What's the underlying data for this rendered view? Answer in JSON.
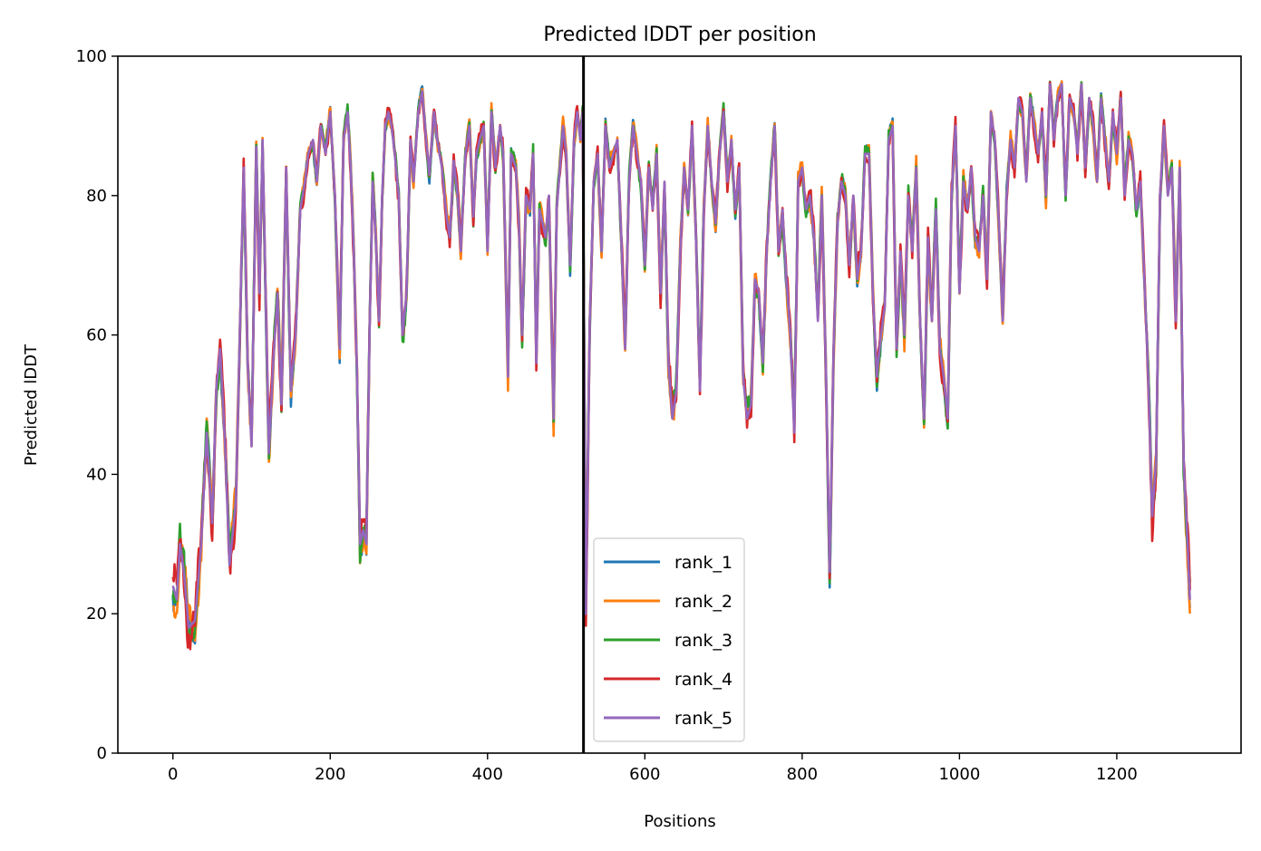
{
  "chart_data": {
    "type": "line",
    "title": "Predicted lDDT per position",
    "xlabel": "Positions",
    "ylabel": "Predicted lDDT",
    "xlim": [
      -70,
      1358
    ],
    "ylim": [
      0,
      100
    ],
    "x_ticks": [
      0,
      200,
      400,
      600,
      800,
      1000,
      1200
    ],
    "y_ticks": [
      0,
      20,
      40,
      60,
      80,
      100
    ],
    "grid": false,
    "legend_position": "lower center",
    "divider_x": 522,
    "divider_color": "#000000",
    "x_max": 1293,
    "base_curve": [
      [
        0,
        24
      ],
      [
        5,
        22
      ],
      [
        9,
        30
      ],
      [
        14,
        26
      ],
      [
        20,
        18
      ],
      [
        28,
        19
      ],
      [
        36,
        30
      ],
      [
        43,
        46
      ],
      [
        50,
        33
      ],
      [
        55,
        52
      ],
      [
        60,
        58
      ],
      [
        66,
        45
      ],
      [
        72,
        27
      ],
      [
        80,
        36
      ],
      [
        86,
        65
      ],
      [
        90,
        84
      ],
      [
        95,
        56
      ],
      [
        100,
        44
      ],
      [
        106,
        87
      ],
      [
        110,
        66
      ],
      [
        114,
        88
      ],
      [
        118,
        65
      ],
      [
        122,
        43
      ],
      [
        128,
        57
      ],
      [
        133,
        66
      ],
      [
        138,
        50
      ],
      [
        144,
        84
      ],
      [
        150,
        52
      ],
      [
        156,
        60
      ],
      [
        162,
        78
      ],
      [
        168,
        82
      ],
      [
        172,
        86
      ],
      [
        178,
        88
      ],
      [
        183,
        82
      ],
      [
        188,
        90
      ],
      [
        194,
        86
      ],
      [
        200,
        92
      ],
      [
        206,
        80
      ],
      [
        212,
        58
      ],
      [
        217,
        88
      ],
      [
        222,
        92
      ],
      [
        226,
        84
      ],
      [
        230,
        72
      ],
      [
        234,
        55
      ],
      [
        238,
        30
      ],
      [
        242,
        32
      ],
      [
        246,
        30
      ],
      [
        250,
        60
      ],
      [
        254,
        82
      ],
      [
        258,
        74
      ],
      [
        262,
        62
      ],
      [
        266,
        80
      ],
      [
        270,
        90
      ],
      [
        274,
        92
      ],
      [
        278,
        90
      ],
      [
        282,
        86
      ],
      [
        287,
        80
      ],
      [
        292,
        60
      ],
      [
        297,
        66
      ],
      [
        302,
        88
      ],
      [
        306,
        82
      ],
      [
        312,
        92
      ],
      [
        317,
        95
      ],
      [
        322,
        88
      ],
      [
        326,
        83
      ],
      [
        332,
        92
      ],
      [
        336,
        88
      ],
      [
        342,
        84
      ],
      [
        348,
        77
      ],
      [
        352,
        74
      ],
      [
        357,
        85
      ],
      [
        362,
        80
      ],
      [
        366,
        72
      ],
      [
        372,
        86
      ],
      [
        377,
        90
      ],
      [
        382,
        77
      ],
      [
        386,
        86
      ],
      [
        390,
        88
      ],
      [
        395,
        90
      ],
      [
        400,
        72
      ],
      [
        405,
        92
      ],
      [
        410,
        84
      ],
      [
        416,
        90
      ],
      [
        420,
        86
      ],
      [
        426,
        54
      ],
      [
        430,
        86
      ],
      [
        436,
        84
      ],
      [
        440,
        76
      ],
      [
        444,
        60
      ],
      [
        449,
        80
      ],
      [
        454,
        78
      ],
      [
        458,
        86
      ],
      [
        462,
        56
      ],
      [
        466,
        78
      ],
      [
        470,
        76
      ],
      [
        474,
        74
      ],
      [
        478,
        80
      ],
      [
        484,
        48
      ],
      [
        488,
        78
      ],
      [
        492,
        84
      ],
      [
        496,
        90
      ],
      [
        500,
        86
      ],
      [
        505,
        70
      ],
      [
        510,
        88
      ],
      [
        514,
        92
      ],
      [
        518,
        88
      ],
      [
        521,
        92
      ],
      [
        525,
        20
      ],
      [
        530,
        62
      ],
      [
        535,
        82
      ],
      [
        540,
        86
      ],
      [
        545,
        72
      ],
      [
        550,
        90
      ],
      [
        555,
        84
      ],
      [
        560,
        86
      ],
      [
        565,
        88
      ],
      [
        570,
        74
      ],
      [
        575,
        58
      ],
      [
        580,
        82
      ],
      [
        585,
        90
      ],
      [
        590,
        86
      ],
      [
        595,
        82
      ],
      [
        600,
        70
      ],
      [
        605,
        84
      ],
      [
        610,
        78
      ],
      [
        615,
        86
      ],
      [
        620,
        66
      ],
      [
        625,
        82
      ],
      [
        630,
        56
      ],
      [
        635,
        48
      ],
      [
        640,
        52
      ],
      [
        645,
        72
      ],
      [
        650,
        84
      ],
      [
        655,
        78
      ],
      [
        660,
        90
      ],
      [
        665,
        74
      ],
      [
        670,
        52
      ],
      [
        675,
        78
      ],
      [
        680,
        90
      ],
      [
        685,
        82
      ],
      [
        690,
        76
      ],
      [
        695,
        86
      ],
      [
        700,
        92
      ],
      [
        705,
        82
      ],
      [
        710,
        88
      ],
      [
        715,
        78
      ],
      [
        720,
        84
      ],
      [
        725,
        54
      ],
      [
        730,
        48
      ],
      [
        735,
        50
      ],
      [
        740,
        68
      ],
      [
        745,
        66
      ],
      [
        750,
        56
      ],
      [
        755,
        72
      ],
      [
        760,
        82
      ],
      [
        765,
        90
      ],
      [
        770,
        72
      ],
      [
        775,
        78
      ],
      [
        780,
        68
      ],
      [
        785,
        60
      ],
      [
        790,
        46
      ],
      [
        795,
        82
      ],
      [
        800,
        84
      ],
      [
        805,
        78
      ],
      [
        810,
        80
      ],
      [
        815,
        74
      ],
      [
        820,
        62
      ],
      [
        825,
        80
      ],
      [
        830,
        56
      ],
      [
        835,
        26
      ],
      [
        840,
        58
      ],
      [
        845,
        76
      ],
      [
        850,
        82
      ],
      [
        855,
        80
      ],
      [
        860,
        70
      ],
      [
        865,
        80
      ],
      [
        870,
        68
      ],
      [
        875,
        72
      ],
      [
        880,
        86
      ],
      [
        885,
        86
      ],
      [
        890,
        66
      ],
      [
        895,
        54
      ],
      [
        900,
        60
      ],
      [
        905,
        64
      ],
      [
        910,
        88
      ],
      [
        915,
        90
      ],
      [
        920,
        58
      ],
      [
        925,
        72
      ],
      [
        930,
        60
      ],
      [
        935,
        80
      ],
      [
        940,
        72
      ],
      [
        945,
        84
      ],
      [
        950,
        62
      ],
      [
        955,
        48
      ],
      [
        960,
        74
      ],
      [
        965,
        62
      ],
      [
        970,
        78
      ],
      [
        975,
        58
      ],
      [
        980,
        54
      ],
      [
        985,
        48
      ],
      [
        990,
        80
      ],
      [
        995,
        90
      ],
      [
        1000,
        66
      ],
      [
        1005,
        82
      ],
      [
        1010,
        78
      ],
      [
        1015,
        84
      ],
      [
        1020,
        74
      ],
      [
        1025,
        72
      ],
      [
        1030,
        80
      ],
      [
        1035,
        68
      ],
      [
        1040,
        92
      ],
      [
        1045,
        88
      ],
      [
        1050,
        76
      ],
      [
        1055,
        62
      ],
      [
        1060,
        80
      ],
      [
        1065,
        88
      ],
      [
        1070,
        84
      ],
      [
        1075,
        94
      ],
      [
        1080,
        92
      ],
      [
        1085,
        82
      ],
      [
        1090,
        94
      ],
      [
        1095,
        90
      ],
      [
        1100,
        86
      ],
      [
        1105,
        92
      ],
      [
        1110,
        80
      ],
      [
        1115,
        96
      ],
      [
        1120,
        88
      ],
      [
        1125,
        94
      ],
      [
        1130,
        96
      ],
      [
        1135,
        80
      ],
      [
        1140,
        94
      ],
      [
        1145,
        92
      ],
      [
        1150,
        86
      ],
      [
        1155,
        96
      ],
      [
        1160,
        84
      ],
      [
        1165,
        94
      ],
      [
        1170,
        90
      ],
      [
        1175,
        82
      ],
      [
        1180,
        94
      ],
      [
        1185,
        88
      ],
      [
        1190,
        82
      ],
      [
        1195,
        92
      ],
      [
        1200,
        86
      ],
      [
        1205,
        94
      ],
      [
        1210,
        80
      ],
      [
        1215,
        88
      ],
      [
        1220,
        86
      ],
      [
        1225,
        78
      ],
      [
        1230,
        82
      ],
      [
        1235,
        68
      ],
      [
        1240,
        54
      ],
      [
        1245,
        34
      ],
      [
        1250,
        42
      ],
      [
        1255,
        80
      ],
      [
        1260,
        90
      ],
      [
        1265,
        80
      ],
      [
        1270,
        84
      ],
      [
        1275,
        62
      ],
      [
        1280,
        84
      ],
      [
        1285,
        42
      ],
      [
        1290,
        30
      ],
      [
        1293,
        22
      ]
    ],
    "series": [
      {
        "name": "rank_1",
        "color": "#1f77b4",
        "seed": 11,
        "amp": 2.4
      },
      {
        "name": "rank_2",
        "color": "#ff7f0e",
        "seed": 23,
        "amp": 2.8
      },
      {
        "name": "rank_3",
        "color": "#2ca02c",
        "seed": 37,
        "amp": 2.6
      },
      {
        "name": "rank_4",
        "color": "#d62728",
        "seed": 51,
        "amp": 3.0
      },
      {
        "name": "rank_5",
        "color": "#9467bd",
        "seed": 0,
        "amp": 0
      }
    ]
  }
}
